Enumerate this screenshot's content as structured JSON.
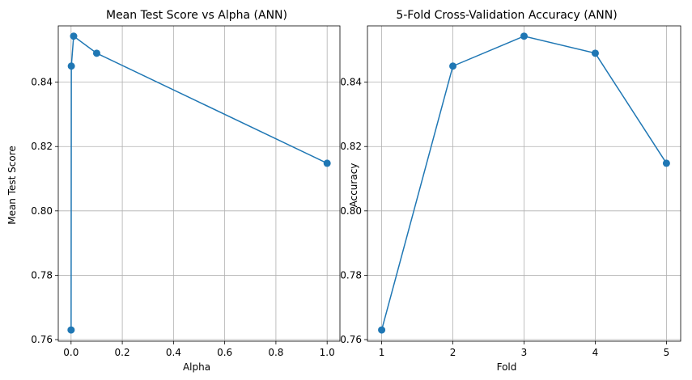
{
  "chart_data": [
    {
      "type": "line",
      "title": "Mean Test Score vs Alpha (ANN)",
      "xlabel": "Alpha",
      "ylabel": "Mean Test Score",
      "grid": true,
      "xlim": [
        -0.05,
        1.05
      ],
      "ylim": [
        0.7595,
        0.8575
      ],
      "xticks": [
        0.0,
        0.2,
        0.4,
        0.6,
        0.8,
        1.0
      ],
      "xtick_labels": [
        "0.0",
        "0.2",
        "0.4",
        "0.6",
        "0.8",
        "1.0"
      ],
      "yticks": [
        0.76,
        0.78,
        0.8,
        0.82,
        0.84
      ],
      "ytick_labels": [
        "0.76",
        "0.78",
        "0.80",
        "0.82",
        "0.84"
      ],
      "color": "#1f77b4",
      "marker": "circle",
      "x": [
        0.0001,
        0.001,
        0.01,
        0.1,
        1.0
      ],
      "y": [
        0.763,
        0.845,
        0.8543,
        0.849,
        0.8148
      ]
    },
    {
      "type": "line",
      "title": "5-Fold Cross-Validation Accuracy (ANN)",
      "xlabel": "Fold",
      "ylabel": "Accuracy",
      "grid": true,
      "xlim": [
        0.8,
        5.2
      ],
      "ylim": [
        0.7595,
        0.8575
      ],
      "xticks": [
        1,
        2,
        3,
        4,
        5
      ],
      "xtick_labels": [
        "1",
        "2",
        "3",
        "4",
        "5"
      ],
      "yticks": [
        0.76,
        0.78,
        0.8,
        0.82,
        0.84
      ],
      "ytick_labels": [
        "0.76",
        "0.78",
        "0.80",
        "0.82",
        "0.84"
      ],
      "color": "#1f77b4",
      "marker": "circle",
      "x": [
        1,
        2,
        3,
        4,
        5
      ],
      "y": [
        0.763,
        0.845,
        0.8543,
        0.849,
        0.8148
      ]
    }
  ]
}
